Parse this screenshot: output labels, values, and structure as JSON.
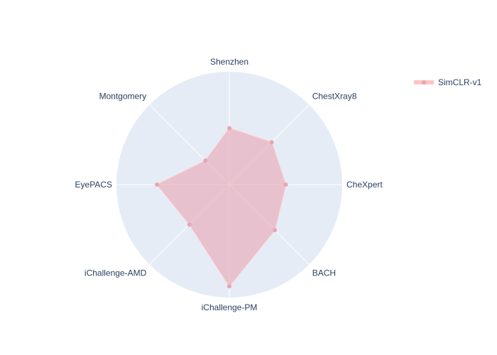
{
  "chart_data": {
    "type": "radar",
    "categories": [
      "Shenzhen",
      "ChestXray8",
      "CheXpert",
      "BACH",
      "iChallenge-PM",
      "iChallenge-AMD",
      "EyePACS",
      "Montgomery"
    ],
    "series": [
      {
        "name": "SimCLR-v1",
        "values": [
          0.5,
          0.53,
          0.5,
          0.57,
          0.9,
          0.5,
          0.64,
          0.3
        ],
        "fill_color": "#e8a5b2",
        "line_color": "#ffc4c4",
        "marker_color": "#e8a5b2"
      }
    ],
    "radial_range": [
      0,
      1
    ],
    "grid": true,
    "legend_position": "top-right",
    "background_color": "#e5ecf6",
    "grid_color": "#ffffff"
  }
}
